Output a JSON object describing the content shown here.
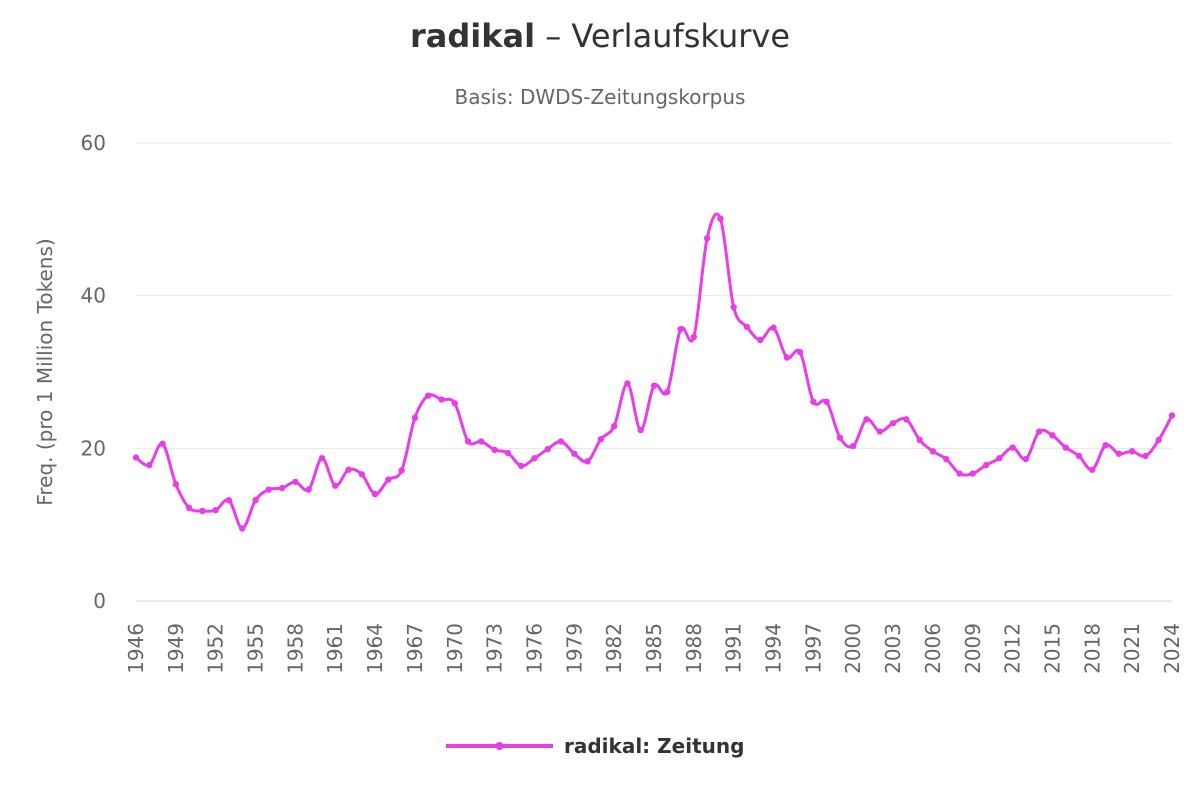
{
  "chart_data": {
    "type": "line",
    "title_word": "radikal",
    "title_rest": " – Verlaufskurve",
    "subtitle": "Basis: DWDS-Zeitungskorpus",
    "ylabel": "Freq. (pro 1 Million Tokens)",
    "xlabel": "",
    "ylim": [
      0,
      60
    ],
    "yticks": [
      0,
      20,
      40,
      60
    ],
    "xlim": [
      1946,
      2024
    ],
    "xticks": [
      1946,
      1949,
      1952,
      1955,
      1958,
      1961,
      1964,
      1967,
      1970,
      1973,
      1976,
      1979,
      1982,
      1985,
      1988,
      1991,
      1994,
      1997,
      2000,
      2003,
      2006,
      2009,
      2012,
      2015,
      2018,
      2021,
      2024
    ],
    "grid": true,
    "legend_position": "bottom-center",
    "colors": {
      "series": "#e83de8",
      "grid": "#e6e6e6",
      "axis": "#ccd6eb",
      "text": "#666666",
      "title": "#333333"
    },
    "series": [
      {
        "name": "radikal: Zeitung",
        "x": [
          1946,
          1947,
          1948,
          1949,
          1950,
          1951,
          1952,
          1953,
          1954,
          1955,
          1956,
          1957,
          1958,
          1959,
          1960,
          1961,
          1962,
          1963,
          1964,
          1965,
          1966,
          1967,
          1968,
          1969,
          1970,
          1971,
          1972,
          1973,
          1974,
          1975,
          1976,
          1977,
          1978,
          1979,
          1980,
          1981,
          1982,
          1983,
          1984,
          1985,
          1986,
          1987,
          1988,
          1989,
          1990,
          1991,
          1992,
          1993,
          1994,
          1995,
          1996,
          1997,
          1998,
          1999,
          2000,
          2001,
          2002,
          2003,
          2004,
          2005,
          2006,
          2007,
          2008,
          2009,
          2010,
          2011,
          2012,
          2013,
          2014,
          2015,
          2016,
          2017,
          2018,
          2019,
          2020,
          2021,
          2022,
          2023,
          2024
        ],
        "values": [
          18.8,
          17.8,
          20.6,
          15.3,
          12.2,
          11.8,
          11.9,
          13.2,
          9.5,
          13.2,
          14.6,
          14.8,
          15.6,
          14.6,
          18.7,
          15.1,
          17.2,
          16.6,
          14.0,
          15.9,
          17.1,
          24.0,
          26.9,
          26.4,
          25.9,
          20.9,
          20.9,
          19.8,
          19.4,
          17.7,
          18.7,
          19.9,
          20.9,
          19.3,
          18.3,
          21.2,
          22.9,
          28.5,
          22.4,
          28.2,
          27.4,
          35.6,
          34.6,
          47.5,
          50.1,
          38.5,
          35.9,
          34.2,
          35.8,
          31.9,
          32.6,
          26.1,
          26.1,
          21.4,
          20.3,
          23.8,
          22.2,
          23.3,
          23.8,
          21.1,
          19.6,
          18.6,
          16.7,
          16.7,
          17.8,
          18.7,
          20.1,
          18.6,
          22.2,
          21.7,
          20.1,
          19.0,
          17.2,
          20.4,
          19.3,
          19.6,
          19.0,
          21.1,
          24.3
        ]
      }
    ]
  }
}
